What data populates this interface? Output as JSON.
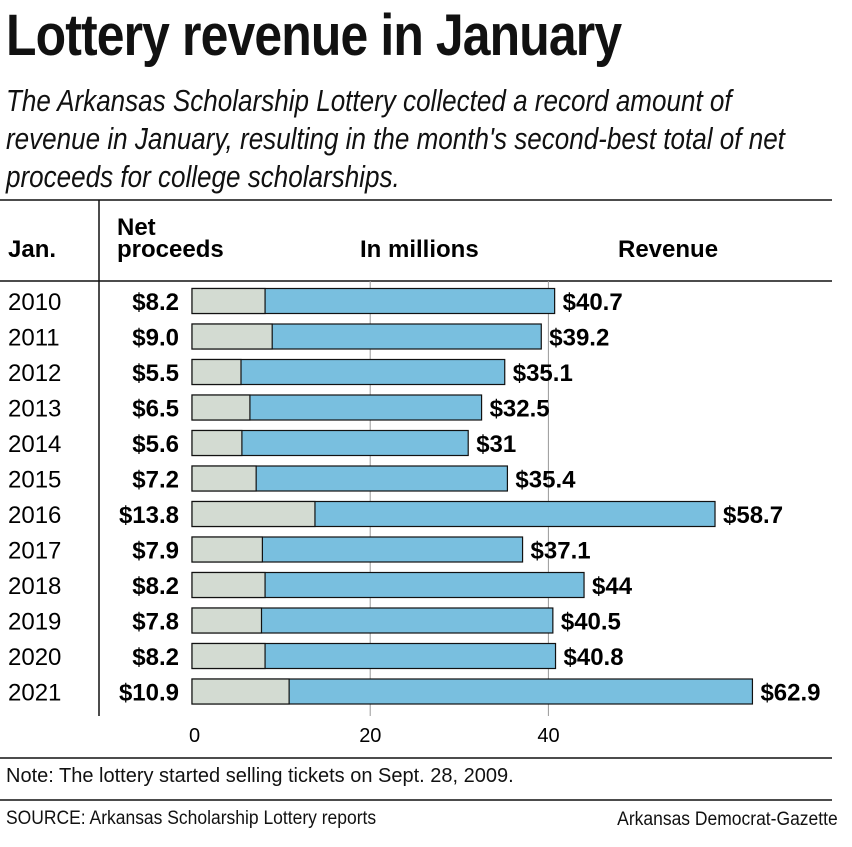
{
  "header": {
    "title": "Lottery revenue in January",
    "subtitle": "The Arkansas Scholarship Lottery collected a record amount of revenue in January, resulting in the month's second-best total of net proceeds for college scholarships."
  },
  "columns": {
    "year": "Jan.",
    "net_line1": "Net",
    "net_line2": "proceeds",
    "units": "In millions",
    "revenue": "Revenue"
  },
  "colors": {
    "net": "#d3dbd2",
    "revenue": "#79bfdf",
    "stroke": "#111111"
  },
  "chart_data": {
    "type": "bar",
    "orientation": "horizontal",
    "title": "Lottery revenue in January",
    "categories": [
      "2010",
      "2011",
      "2012",
      "2013",
      "2014",
      "2015",
      "2016",
      "2017",
      "2018",
      "2019",
      "2020",
      "2021"
    ],
    "series": [
      {
        "name": "Net proceeds",
        "values": [
          8.2,
          9.0,
          5.5,
          6.5,
          5.6,
          7.2,
          13.8,
          7.9,
          8.2,
          7.8,
          8.2,
          10.9
        ]
      },
      {
        "name": "Revenue",
        "values": [
          40.7,
          39.2,
          35.1,
          32.5,
          31,
          35.4,
          58.7,
          37.1,
          44,
          40.5,
          40.8,
          62.9
        ]
      }
    ],
    "net_labels": [
      "$8.2",
      "$9.0",
      "$5.5",
      "$6.5",
      "$5.6",
      "$7.2",
      "$13.8",
      "$7.9",
      "$8.2",
      "$7.8",
      "$8.2",
      "$10.9"
    ],
    "revenue_labels": [
      "$40.7",
      "$39.2",
      "$35.1",
      "$32.5",
      "$31",
      "$35.4",
      "$58.7",
      "$37.1",
      "$44",
      "$40.5",
      "$40.8",
      "$62.9"
    ],
    "xticks": [
      0,
      20,
      40
    ],
    "xtick_labels": [
      "0",
      "20",
      "40"
    ],
    "xlim": [
      0,
      63
    ],
    "grid": true
  },
  "footer": {
    "note": "Note: The lottery started selling tickets on Sept. 28, 2009.",
    "source": "SOURCE: Arkansas Scholarship Lottery reports",
    "credit": "Arkansas Democrat-Gazette"
  }
}
